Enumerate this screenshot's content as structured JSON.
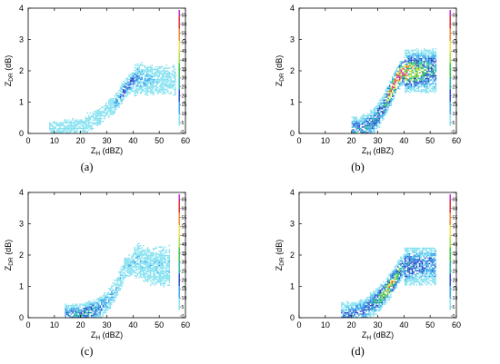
{
  "figure": {
    "panels": [
      {
        "label": "(a)"
      },
      {
        "label": "(b)"
      },
      {
        "label": "(c)"
      },
      {
        "label": "(d)"
      }
    ],
    "xlabel": {
      "main": "Z",
      "sub": "H",
      "tail": " (dBZ)"
    },
    "ylabel": {
      "main": "Z",
      "sub": "DR",
      "tail": " (dB)"
    }
  },
  "chart_data": [
    {
      "type": "heatmap",
      "panel": "(a)",
      "xlabel": "ZH (dBZ)",
      "ylabel": "ZDR (dB)",
      "xlim": [
        0,
        60
      ],
      "ylim": [
        0,
        4
      ],
      "xticks": [
        0,
        10,
        20,
        30,
        40,
        50,
        60
      ],
      "yticks": [
        0,
        1,
        2,
        3,
        4
      ],
      "colorbar": {
        "ticks": [
          0,
          5,
          10,
          15,
          20,
          25,
          30,
          35,
          40,
          45,
          50,
          55,
          60,
          65
        ],
        "range": [
          0,
          68
        ]
      },
      "colormap": [
        "#ffffff",
        "#7fe0f0",
        "#30a0e8",
        "#1e3fc8",
        "#16b4a0",
        "#30c040",
        "#a0e040",
        "#f0e040",
        "#f08020",
        "#e02020",
        "#c020c0"
      ],
      "density_ridge": [
        [
          10,
          0.02
        ],
        [
          20,
          0.2
        ],
        [
          28,
          0.55
        ],
        [
          33,
          0.9
        ],
        [
          37,
          1.4
        ],
        [
          40,
          1.7
        ],
        [
          43,
          1.8
        ],
        [
          47,
          1.7
        ]
      ],
      "density_peak": {
        "x": 37,
        "y": 1.5,
        "count": 9
      },
      "extent": {
        "x": [
          8,
          56
        ],
        "y": [
          0,
          2.6
        ]
      },
      "grid": false
    },
    {
      "type": "heatmap",
      "panel": "(b)",
      "xlabel": "ZH (dBZ)",
      "ylabel": "ZDR (dB)",
      "xlim": [
        0,
        60
      ],
      "ylim": [
        0,
        4
      ],
      "xticks": [
        0,
        10,
        20,
        30,
        40,
        50,
        60
      ],
      "yticks": [
        0,
        1,
        2,
        3,
        4
      ],
      "colorbar": {
        "ticks": [
          0,
          5,
          10,
          15,
          20,
          25,
          30,
          35,
          40,
          45,
          50,
          55,
          60,
          65
        ],
        "range": [
          0,
          68
        ]
      },
      "colormap": [
        "#ffffff",
        "#7fe0f0",
        "#30a0e8",
        "#1e3fc8",
        "#16b4a0",
        "#30c040",
        "#a0e040",
        "#f0e040",
        "#f08020",
        "#e02020",
        "#c020c0"
      ],
      "density_ridge": [
        [
          23,
          0.05
        ],
        [
          28,
          0.3
        ],
        [
          32,
          0.8
        ],
        [
          35,
          1.3
        ],
        [
          37,
          1.7
        ],
        [
          39,
          1.95
        ],
        [
          40,
          2.0
        ]
      ],
      "density_peak": {
        "x": 37,
        "y": 1.7,
        "count": 32
      },
      "extent": {
        "x": [
          20,
          52
        ],
        "y": [
          0,
          2.7
        ]
      },
      "grid": false
    },
    {
      "type": "heatmap",
      "panel": "(c)",
      "xlabel": "ZH (dBZ)",
      "ylabel": "ZDR (dB)",
      "xlim": [
        0,
        60
      ],
      "ylim": [
        0,
        4
      ],
      "xticks": [
        0,
        10,
        20,
        30,
        40,
        50,
        60
      ],
      "yticks": [
        0,
        1,
        2,
        3,
        4
      ],
      "colorbar": {
        "ticks": [
          0,
          5,
          10,
          15,
          20,
          25,
          30,
          35,
          40,
          45,
          50,
          55,
          60,
          65
        ],
        "range": [
          0,
          68
        ]
      },
      "colormap": [
        "#ffffff",
        "#7fe0f0",
        "#30a0e8",
        "#1e3fc8",
        "#16b4a0",
        "#30c040",
        "#a0e040",
        "#f0e040",
        "#f08020",
        "#e02020",
        "#c020c0"
      ],
      "density_ridge": [
        [
          14,
          0.03
        ],
        [
          20,
          0.08
        ],
        [
          25,
          0.2
        ],
        [
          30,
          0.5
        ],
        [
          34,
          1.0
        ],
        [
          37,
          1.6
        ],
        [
          41,
          1.8
        ],
        [
          46,
          1.6
        ]
      ],
      "density_peak": {
        "x": 21,
        "y": 0.08,
        "count": 12
      },
      "extent": {
        "x": [
          14,
          54
        ],
        "y": [
          0,
          2.6
        ]
      },
      "grid": false
    },
    {
      "type": "heatmap",
      "panel": "(d)",
      "xlabel": "ZH (dBZ)",
      "ylabel": "ZDR (dB)",
      "xlim": [
        0,
        60
      ],
      "ylim": [
        0,
        4
      ],
      "xticks": [
        0,
        10,
        20,
        30,
        40,
        50,
        60
      ],
      "yticks": [
        0,
        1,
        2,
        3,
        4
      ],
      "colorbar": {
        "ticks": [
          0,
          5,
          10,
          15,
          20,
          25,
          30,
          35,
          40,
          45,
          50,
          55,
          60,
          65
        ],
        "range": [
          0,
          68
        ]
      },
      "colormap": [
        "#ffffff",
        "#7fe0f0",
        "#30a0e8",
        "#1e3fc8",
        "#16b4a0",
        "#30c040",
        "#a0e040",
        "#f0e040",
        "#f08020",
        "#e02020",
        "#c020c0"
      ],
      "density_ridge": [
        [
          18,
          0.03
        ],
        [
          24,
          0.15
        ],
        [
          29,
          0.45
        ],
        [
          33,
          0.8
        ],
        [
          36,
          1.2
        ],
        [
          38,
          1.5
        ],
        [
          40,
          1.7
        ]
      ],
      "density_peak": {
        "x": 34,
        "y": 1.0,
        "count": 22
      },
      "extent": {
        "x": [
          16,
          52
        ],
        "y": [
          0,
          2.2
        ]
      },
      "grid": false
    }
  ]
}
